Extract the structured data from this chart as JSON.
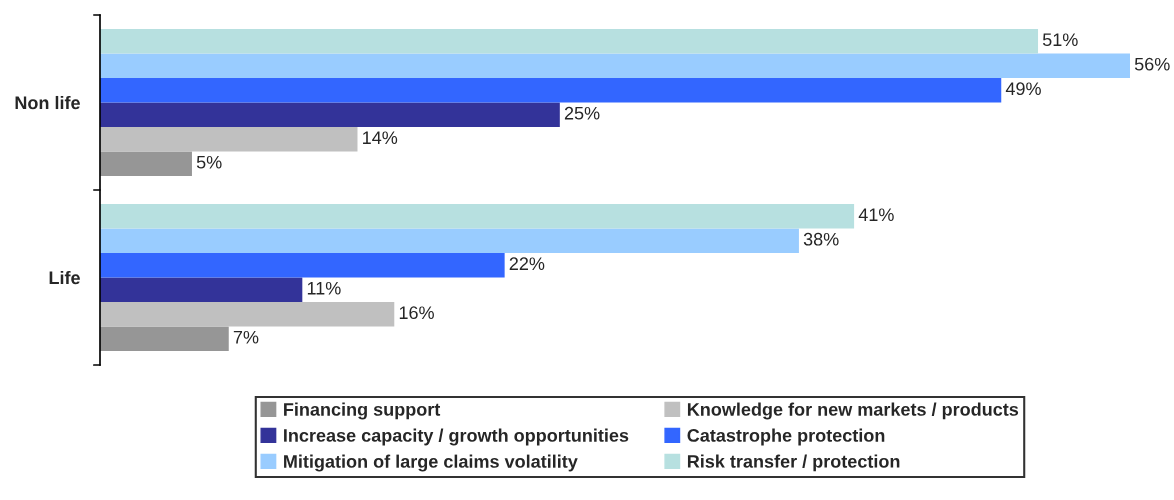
{
  "chart_data": {
    "type": "bar",
    "orientation": "horizontal",
    "categories": [
      "Non life",
      "Life"
    ],
    "series": [
      {
        "name": "Financing support",
        "color": "#969696",
        "values": [
          5,
          7
        ],
        "value_labels": [
          "5%",
          "7%"
        ]
      },
      {
        "name": "Knowledge for new markets / products",
        "color": "#c0c0c0",
        "values": [
          14,
          16
        ],
        "value_labels": [
          "14%",
          "16%"
        ]
      },
      {
        "name": "Increase capacity / growth opportunities",
        "color": "#333399",
        "values": [
          25,
          11
        ],
        "value_labels": [
          "25%",
          "11%"
        ]
      },
      {
        "name": "Catastrophe protection",
        "color": "#3366ff",
        "values": [
          49,
          22
        ],
        "value_labels": [
          "49%",
          "22%"
        ]
      },
      {
        "name": "Mitigation of large claims volatility",
        "color": "#99ccff",
        "values": [
          56,
          38
        ],
        "value_labels": [
          "56%",
          "38%"
        ]
      },
      {
        "name": "Risk transfer / protection",
        "color": "#b7e0e0",
        "values": [
          51,
          41
        ],
        "value_labels": [
          "51%",
          "41%"
        ]
      }
    ],
    "legend": "bottom",
    "grid": false
  }
}
